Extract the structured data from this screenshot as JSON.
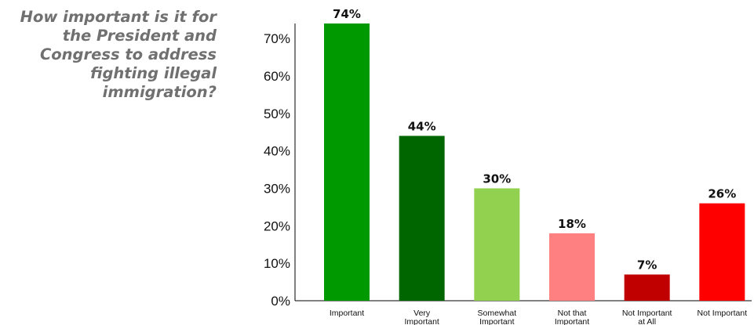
{
  "question": "How important is it for the President and Congress to address fighting illegal immigration?",
  "chart_data": {
    "type": "bar",
    "title": "",
    "xlabel": "",
    "ylabel": "",
    "ylim": [
      0,
      74
    ],
    "yticks": [
      0,
      10,
      20,
      30,
      40,
      50,
      60,
      70
    ],
    "tick_format": "{v}%",
    "legend": false,
    "grid": false,
    "categories": [
      [
        "Important"
      ],
      [
        "Very",
        "Important"
      ],
      [
        "Somewhat",
        "Important"
      ],
      [
        "Not that",
        "Important"
      ],
      [
        "Not Important",
        "at All"
      ],
      [
        "Not Important"
      ]
    ],
    "values": [
      74,
      44,
      30,
      18,
      7,
      26
    ],
    "data_labels": [
      "74%",
      "44%",
      "30%",
      "18%",
      "7%",
      "26%"
    ],
    "colors": [
      "#009900",
      "#006600",
      "#92D050",
      "#FF8080",
      "#C00000",
      "#FF0000"
    ]
  }
}
